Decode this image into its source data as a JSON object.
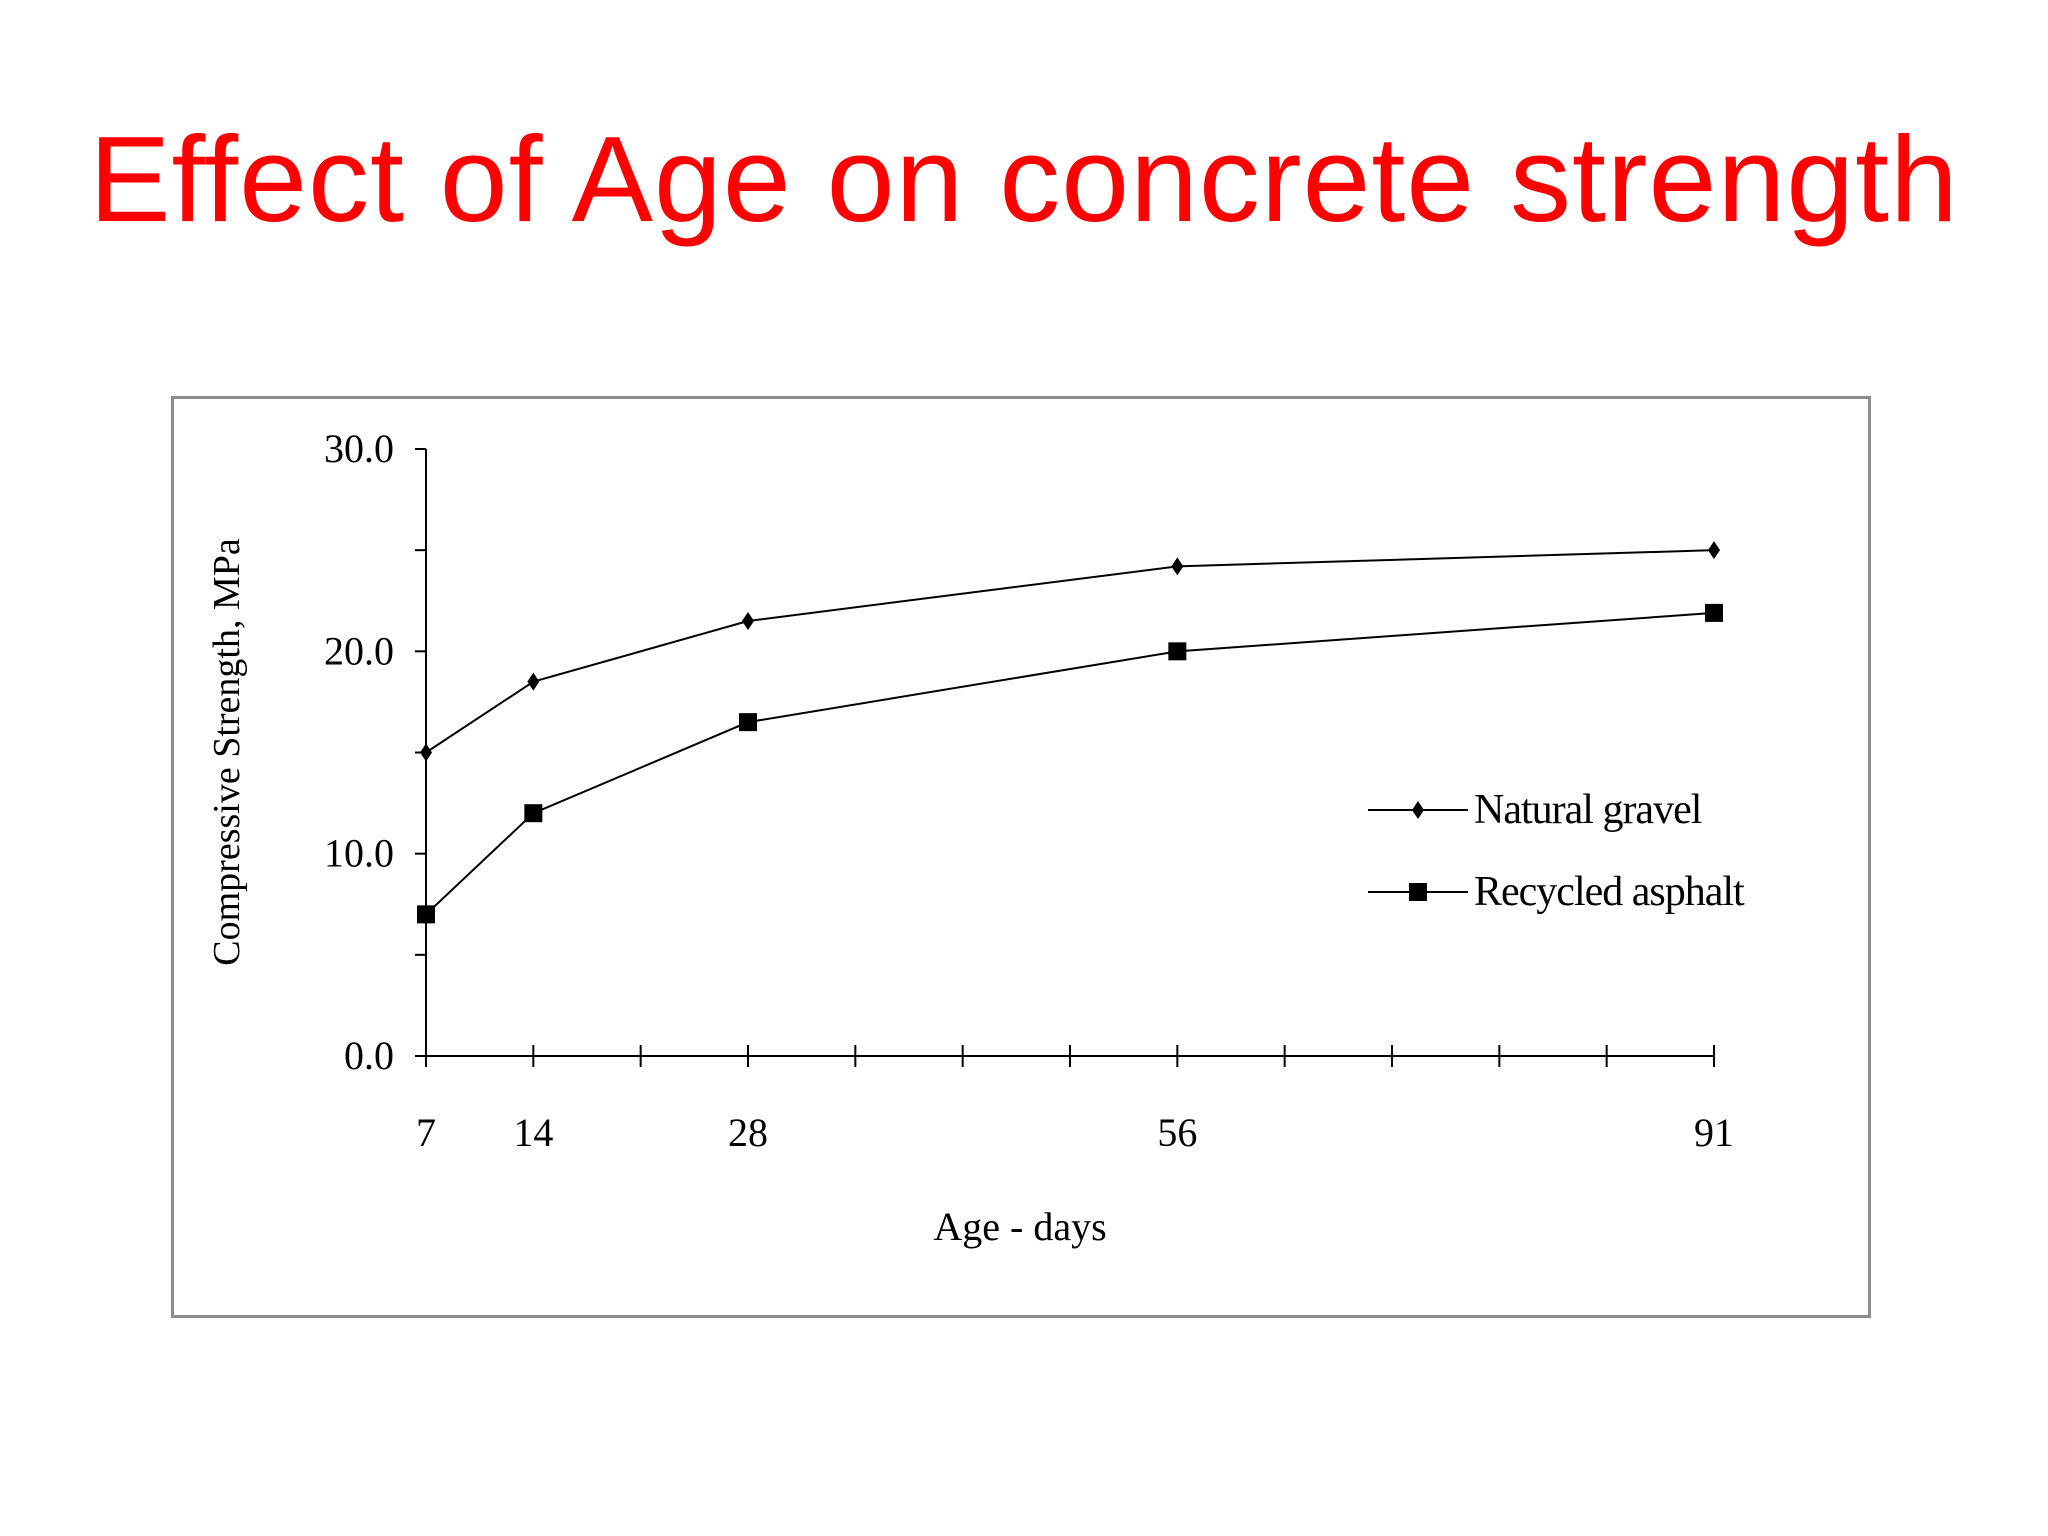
{
  "slide": {
    "title": "Effect of Age on concrete strength",
    "title_color": "#ff0000"
  },
  "chart_data": {
    "type": "line",
    "x": [
      7,
      14,
      28,
      56,
      91
    ],
    "x_tick_labels": [
      "7",
      "14",
      "28",
      "56",
      "91"
    ],
    "y_tick_labels": [
      "0.0",
      "10.0",
      "20.0",
      "30.0"
    ],
    "xlabel": "Age - days",
    "ylabel": "Compressive Strength, MPa",
    "ylim": [
      0,
      30
    ],
    "grid": false,
    "legend_position": "center-right",
    "series": [
      {
        "name": "Natural gravel",
        "marker": "diamond",
        "color": "#000000",
        "values": [
          15.0,
          18.5,
          21.5,
          24.2,
          25.0
        ]
      },
      {
        "name": "Recycled asphalt",
        "marker": "square",
        "color": "#000000",
        "values": [
          7.0,
          12.0,
          16.5,
          20.0,
          21.9
        ]
      }
    ]
  }
}
